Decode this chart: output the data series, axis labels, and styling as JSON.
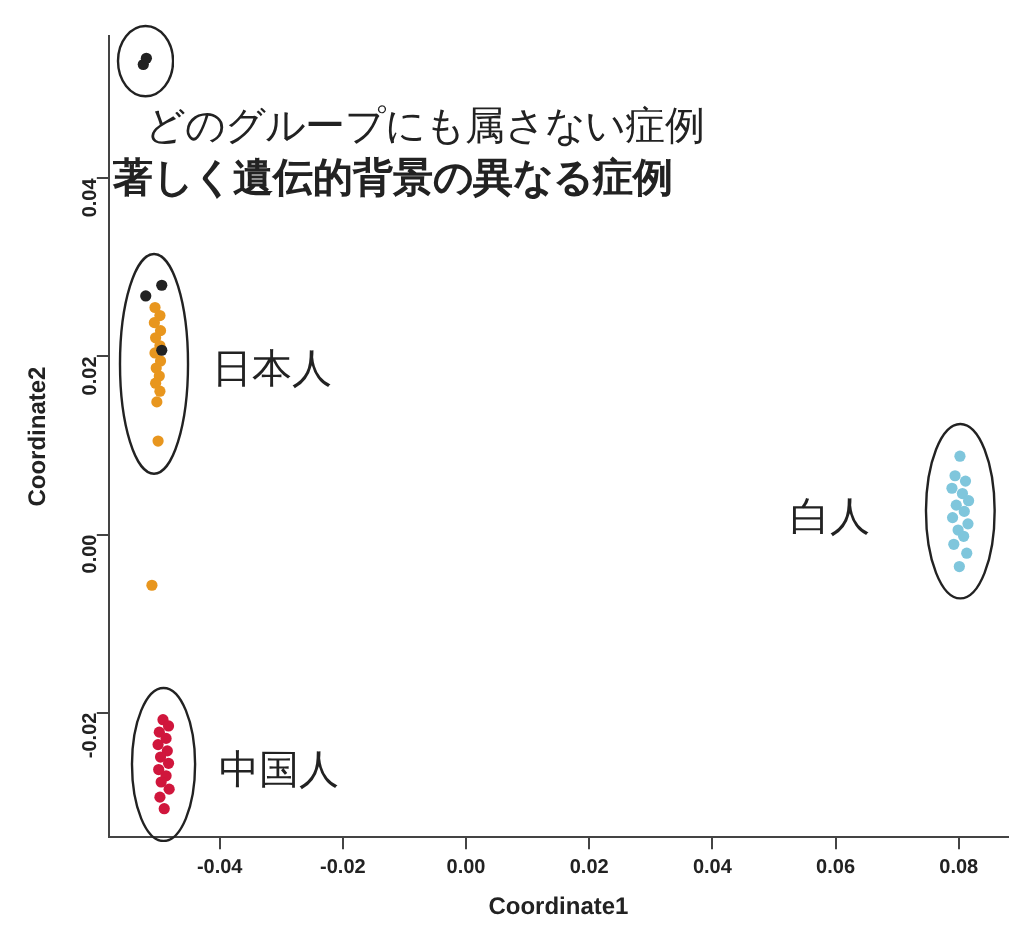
{
  "chart_data": {
    "type": "scatter",
    "xlabel": "Coordinate1",
    "ylabel": "Coordinate2",
    "xlim": [
      -0.058,
      0.088
    ],
    "ylim": [
      -0.034,
      0.056
    ],
    "xticks": [
      -0.04,
      -0.02,
      {
        "value": 0,
        "label": "0.00"
      },
      0.02,
      0.04,
      0.06,
      0.08
    ],
    "yticks": [
      -0.02,
      {
        "value": 0,
        "label": "0.00"
      },
      0.02,
      0.04
    ],
    "grid": false,
    "legend": false,
    "marker": "circle",
    "series": [
      {
        "color": "#222222",
        "x": [
          -0.0524,
          -0.0519,
          -0.052,
          -0.0494,
          -0.0494
        ],
        "values": [
          0.0528,
          0.0535,
          0.0268,
          0.028,
          0.0207
        ]
      },
      {
        "color": "#e8961e",
        "x": [
          -0.0505,
          -0.0497,
          -0.0506,
          -0.0496,
          -0.0504,
          -0.0497,
          -0.0505,
          -0.0496,
          -0.0503,
          -0.0498,
          -0.0504,
          -0.0497,
          -0.0502,
          -0.05
        ],
        "values": [
          0.0255,
          0.0246,
          0.0238,
          0.0229,
          0.0221,
          0.0212,
          0.0204,
          0.0195,
          0.0187,
          0.0178,
          0.017,
          0.0161,
          0.0149,
          0.0105
        ]
      },
      {
        "color": "#e8961e",
        "x": [
          -0.051
        ],
        "values": [
          -0.0057
        ]
      },
      {
        "color": "#d0163c",
        "x": [
          -0.0492,
          -0.0483,
          -0.0498,
          -0.0487,
          -0.05,
          -0.0485,
          -0.0496,
          -0.0483,
          -0.0499,
          -0.0487,
          -0.0495,
          -0.0482,
          -0.0497,
          -0.049
        ],
        "values": [
          -0.0208,
          -0.0215,
          -0.0222,
          -0.0229,
          -0.0236,
          -0.0243,
          -0.025,
          -0.0257,
          -0.0264,
          -0.0271,
          -0.0278,
          -0.0286,
          -0.0295,
          -0.0308
        ]
      },
      {
        "color": "#7fc6dc",
        "x": [
          0.0802,
          0.0794,
          0.0811,
          0.0789,
          0.0806,
          0.0816,
          0.0796,
          0.0809,
          0.079,
          0.0815,
          0.0799,
          0.0808,
          0.0792,
          0.0813,
          0.0801
        ],
        "values": [
          0.0088,
          0.0066,
          0.006,
          0.0052,
          0.0046,
          0.0038,
          0.0033,
          0.0026,
          0.0019,
          0.0012,
          0.0005,
          -0.0002,
          -0.0011,
          -0.0021,
          -0.0036
        ]
      }
    ],
    "annotations": [
      "どのグループにも属さない症例",
      "著しく遺伝的背景の異なる症例",
      "日本人",
      "中国人",
      "白人"
    ]
  }
}
